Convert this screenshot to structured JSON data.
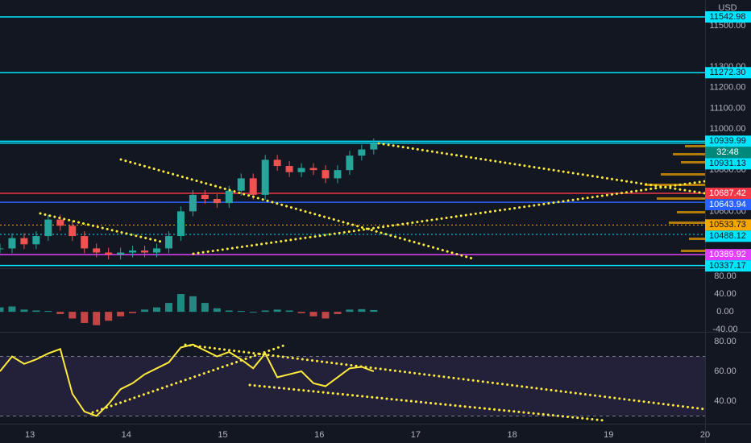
{
  "currency": "USD",
  "countdown": "32:48",
  "price_range": [
    10324,
    11625
  ],
  "price_axis": [
    "11500.00",
    "11300.00",
    "11200.00",
    "11100.00",
    "11000.00",
    "10800.00",
    "10600.00"
  ],
  "price_levels": [
    {
      "label": "11542.98",
      "color": "#00e5ff",
      "text_color": "#131722",
      "style": "solid"
    },
    {
      "label": "11272.30",
      "color": "#00e5ff",
      "text_color": "#131722",
      "style": "solid"
    },
    {
      "label": "10939.99",
      "color": "#00e5ff",
      "text_color": "#131722",
      "style": "solid"
    },
    {
      "label": "10931.13",
      "color": "#00e5ff",
      "text_color": "#131722",
      "style": "solid"
    },
    {
      "label": "10687.42",
      "color": "#f23645",
      "text_color": "#ffffff",
      "style": "solid"
    },
    {
      "label": "10643.94",
      "color": "#2962ff",
      "text_color": "#ffffff",
      "style": "solid"
    },
    {
      "label": "10533.73",
      "color": "#f7a600",
      "text_color": "#131722",
      "style": "dotted"
    },
    {
      "label": "10488.12",
      "color": "#00e5ff",
      "text_color": "#131722",
      "style": "dotted"
    },
    {
      "label": "10389.92",
      "color": "#e040fb",
      "text_color": "#ffffff",
      "style": "solid"
    },
    {
      "label": "10337.17",
      "color": "#00e5ff",
      "text_color": "#131722",
      "style": "solid"
    }
  ],
  "macd_range": [
    -45,
    98
  ],
  "macd_axis": [
    "80.00",
    "40.00",
    "0.00",
    "-40.00"
  ],
  "rsi_range": [
    25.4,
    86.5
  ],
  "rsi_axis": [
    "80.00",
    "60.00",
    "40.00"
  ],
  "rsi_bands": [
    70,
    30
  ],
  "day_range": [
    12.69,
    20
  ],
  "days": [
    "13",
    "14",
    "15",
    "16",
    "17",
    "18",
    "19",
    "20"
  ],
  "series_start_day": 12.69,
  "series_step_day": 0.125,
  "closes": [
    10420,
    10470,
    10440,
    10480,
    10560,
    10530,
    10480,
    10420,
    10400,
    10390,
    10400,
    10410,
    10400,
    10420,
    10480,
    10600,
    10680,
    10660,
    10640,
    10700,
    10760,
    10680,
    10850,
    10820,
    10790,
    10810,
    10800,
    10760,
    10800,
    10870,
    10900,
    10930
  ],
  "macd_histogram": [
    10,
    12,
    5,
    3,
    2,
    -5,
    -15,
    -25,
    -30,
    -20,
    -10,
    -3,
    5,
    10,
    20,
    40,
    35,
    20,
    8,
    3,
    2,
    0,
    3,
    5,
    3,
    -3,
    -10,
    -15,
    -5,
    5,
    6,
    4
  ],
  "rsi": [
    60,
    70,
    65,
    68,
    72,
    75,
    45,
    33,
    30,
    38,
    48,
    52,
    58,
    62,
    66,
    76,
    78,
    74,
    70,
    73,
    68,
    62,
    72,
    56,
    58,
    60,
    52,
    50,
    56,
    62,
    63,
    60
  ]
}
